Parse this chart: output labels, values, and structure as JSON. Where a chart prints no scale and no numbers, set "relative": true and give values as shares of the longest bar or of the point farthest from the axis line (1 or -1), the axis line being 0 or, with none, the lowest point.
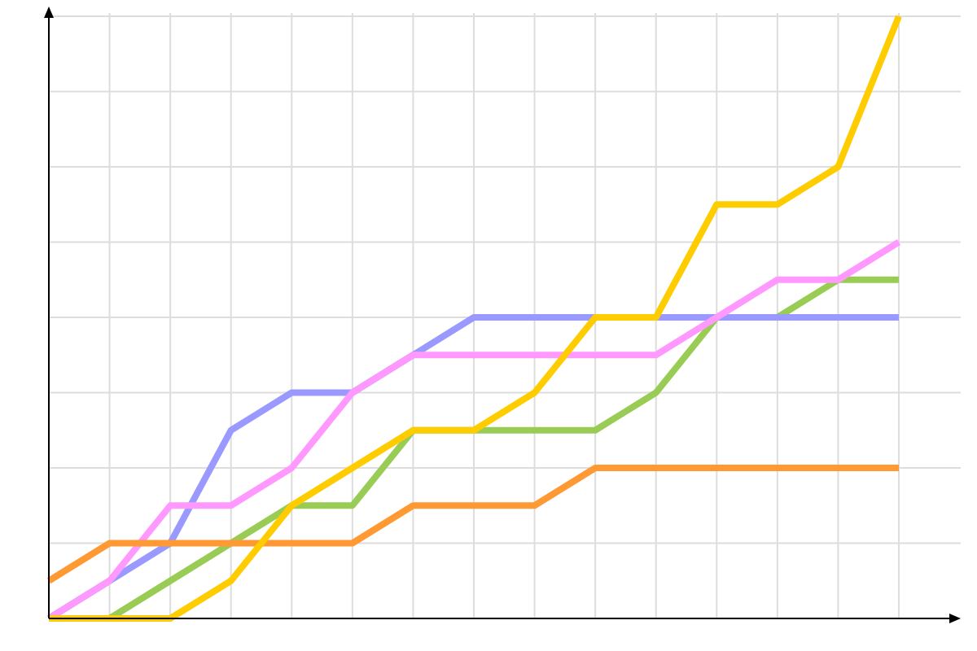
{
  "chart_data": {
    "type": "line",
    "relative": true,
    "grid": true,
    "marker": "none",
    "categories": [
      null,
      null,
      null,
      null,
      null,
      null,
      null,
      null,
      null,
      null,
      null,
      null,
      null,
      null,
      null
    ],
    "series": [
      {
        "color": "#99cc55",
        "values": [
          0,
          0,
          0.0625,
          0.125,
          0.1875,
          0.1875,
          0.3125,
          0.3125,
          0.3125,
          0.3125,
          0.375,
          0.5,
          0.5,
          0.5625,
          0.5625
        ]
      },
      {
        "color": "#9999ff",
        "values": [
          0,
          0.0625,
          0.125,
          0.3125,
          0.375,
          0.375,
          0.4375,
          0.5,
          0.5,
          0.5,
          0.5,
          0.5,
          0.5,
          0.5,
          0.5
        ]
      },
      {
        "color": "#ff99ff",
        "values": [
          0,
          0.0625,
          0.1875,
          0.1875,
          0.25,
          0.375,
          0.4375,
          0.4375,
          0.4375,
          0.4375,
          0.4375,
          0.5,
          0.5625,
          0.5625,
          0.625
        ]
      },
      {
        "color": "#ff9933",
        "values": [
          0.0625,
          0.125,
          0.125,
          0.125,
          0.125,
          0.125,
          0.1875,
          0.1875,
          0.1875,
          0.25,
          0.25,
          0.25,
          0.25,
          0.25,
          0.25
        ]
      },
      {
        "color": "#ffcc00",
        "values": [
          0,
          0,
          0,
          0.0625,
          0.1875,
          0.25,
          0.3125,
          0.3125,
          0.375,
          0.5,
          0.5,
          0.6875,
          0.6875,
          0.75,
          1
        ]
      }
    ]
  }
}
